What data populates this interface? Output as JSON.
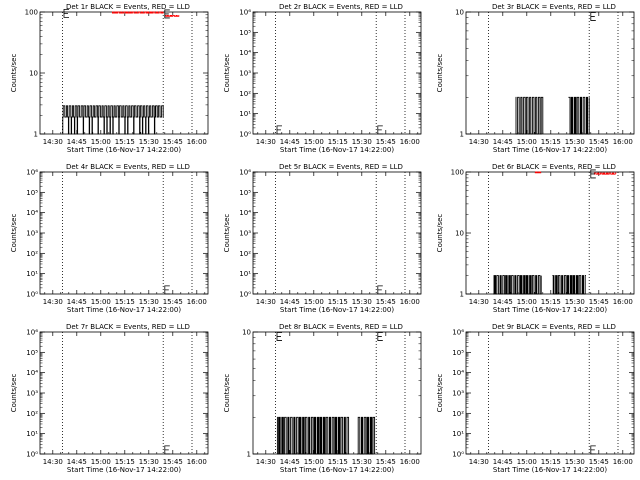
{
  "chart_data": [
    {
      "type": "line",
      "title": "Det 1r BLACK = Events, RED = LLD",
      "xlabel": "Start Time (16-Nov-17 14:22:00)",
      "ylabel": "Counts/sec",
      "xlim": [
        "14:22",
        "16:07"
      ],
      "x_ticks": [
        "14:30",
        "14:45",
        "15:00",
        "15:15",
        "15:30",
        "15:45",
        "16:00"
      ],
      "yscale": "log",
      "ylim": [
        1,
        100
      ],
      "y_ticks": [
        "1",
        "10",
        "100"
      ],
      "vlines": [
        "14:36",
        "15:39",
        "15:57"
      ],
      "series": [
        {
          "name": "Events",
          "color": "#000000",
          "segments": [
            {
              "from": "14:36",
              "to": "15:34",
              "base": 1.9,
              "alt": 2.9,
              "low": 1
            },
            {
              "from": "15:34",
              "to": "15:39",
              "base": 1.9,
              "alt": 2.9,
              "low": 1.9
            }
          ]
        },
        {
          "name": "LLD",
          "color": "#ff0000",
          "segments": [
            {
              "from": "15:07",
              "to": "15:39",
              "base": 100,
              "alt": 96,
              "low": 96
            },
            {
              "from": "15:40",
              "to": "15:49",
              "base": 88,
              "alt": 85,
              "low": 85
            }
          ]
        }
      ],
      "markers": [
        {
          "x": "14:37",
          "y": 95
        },
        {
          "x": "15:40",
          "y": 93
        }
      ]
    },
    {
      "type": "line",
      "title": "Det 2r BLACK = Events, RED = LLD",
      "xlabel": "Start Time (16-Nov-17 14:22:00)",
      "ylabel": "Counts/sec",
      "xlim": [
        "14:22",
        "16:07"
      ],
      "x_ticks": [
        "14:30",
        "14:45",
        "15:00",
        "15:15",
        "15:30",
        "15:45",
        "16:00"
      ],
      "yscale": "log",
      "ylim": [
        1,
        1000000
      ],
      "y_ticks": [
        "10⁰",
        "10¹",
        "10²",
        "10³",
        "10⁴",
        "10⁵",
        "10⁶"
      ],
      "vlines": [
        "14:36",
        "15:39",
        "15:57"
      ],
      "series": [],
      "markers": [
        {
          "x": "14:37",
          "y": 1.6
        },
        {
          "x": "15:40",
          "y": 1.6
        }
      ]
    },
    {
      "type": "line",
      "title": "Det 3r BLACK = Events, RED = LLD",
      "xlabel": "Start Time (16-Nov-17 14:22:00)",
      "ylabel": "Counts/sec",
      "xlim": [
        "14:22",
        "16:07"
      ],
      "x_ticks": [
        "14:30",
        "14:45",
        "15:00",
        "15:15",
        "15:30",
        "15:45",
        "16:00"
      ],
      "yscale": "log",
      "ylim": [
        1,
        10
      ],
      "y_ticks": [
        "1",
        "10"
      ],
      "vlines": [
        "14:36",
        "15:39",
        "15:57"
      ],
      "series": [
        {
          "name": "Events",
          "color": "#000000",
          "segments": [
            {
              "from": "14:53",
              "to": "15:10",
              "base": 1,
              "alt": 2,
              "low": 1
            },
            {
              "from": "15:26",
              "to": "15:39",
              "base": 2,
              "alt": 1,
              "low": 1
            }
          ]
        }
      ],
      "markers": [
        {
          "x": "15:40",
          "y": 9.2
        }
      ]
    },
    {
      "type": "line",
      "title": "Det 4r BLACK = Events, RED = LLD",
      "xlabel": "Start Time (16-Nov-17 14:22:00)",
      "ylabel": "Counts/sec",
      "xlim": [
        "14:22",
        "16:07"
      ],
      "x_ticks": [
        "14:30",
        "14:45",
        "15:00",
        "15:15",
        "15:30",
        "15:45",
        "16:00"
      ],
      "yscale": "log",
      "ylim": [
        1,
        1000000
      ],
      "y_ticks": [
        "10⁰",
        "10¹",
        "10²",
        "10³",
        "10⁴",
        "10⁵",
        "10⁶"
      ],
      "vlines": [
        "14:36",
        "15:39",
        "15:57"
      ],
      "series": [],
      "markers": [
        {
          "x": "15:40",
          "y": 1.6
        }
      ]
    },
    {
      "type": "line",
      "title": "Det 5r BLACK = Events, RED = LLD",
      "xlabel": "Start Time (16-Nov-17 14:22:00)",
      "ylabel": "Counts/sec",
      "xlim": [
        "14:22",
        "16:07"
      ],
      "x_ticks": [
        "14:30",
        "14:45",
        "15:00",
        "15:15",
        "15:30",
        "15:45",
        "16:00"
      ],
      "yscale": "log",
      "ylim": [
        1,
        1000000
      ],
      "y_ticks": [
        "10⁰",
        "10¹",
        "10²",
        "10³",
        "10⁴",
        "10⁵",
        "10⁶"
      ],
      "vlines": [
        "14:36",
        "15:39",
        "15:57"
      ],
      "series": [],
      "markers": [
        {
          "x": "15:40",
          "y": 1.6
        }
      ]
    },
    {
      "type": "line",
      "title": "Det 6r BLACK = Events, RED = LLD",
      "xlabel": "Start Time (16-Nov-17 14:22:00)",
      "ylabel": "Counts/sec",
      "xlim": [
        "14:22",
        "16:07"
      ],
      "x_ticks": [
        "14:30",
        "14:45",
        "15:00",
        "15:15",
        "15:30",
        "15:45",
        "16:00"
      ],
      "yscale": "log",
      "ylim": [
        1,
        100
      ],
      "y_ticks": [
        "1",
        "10",
        "100"
      ],
      "vlines": [
        "14:36",
        "15:39",
        "15:57"
      ],
      "series": [
        {
          "name": "Events",
          "color": "#000000",
          "segments": [
            {
              "from": "14:39",
              "to": "15:09",
              "base": 2,
              "alt": 1,
              "low": 1
            },
            {
              "from": "15:16",
              "to": "15:37",
              "base": 2,
              "alt": 1,
              "low": 1
            }
          ]
        },
        {
          "name": "LLD",
          "color": "#ff0000",
          "segments": [
            {
              "from": "15:05",
              "to": "15:09",
              "base": 100,
              "alt": 97,
              "low": 97
            },
            {
              "from": "15:42",
              "to": "15:56",
              "base": 96,
              "alt": 92,
              "low": 92
            }
          ]
        }
      ],
      "markers": [
        {
          "x": "15:40",
          "y": 93
        }
      ]
    },
    {
      "type": "line",
      "title": "Det 7r BLACK = Events, RED = LLD",
      "xlabel": "Start Time (16-Nov-17 14:22:00)",
      "ylabel": "Counts/sec",
      "xlim": [
        "14:22",
        "16:07"
      ],
      "x_ticks": [
        "14:30",
        "14:45",
        "15:00",
        "15:15",
        "15:30",
        "15:45",
        "16:00"
      ],
      "yscale": "log",
      "ylim": [
        1,
        1000000
      ],
      "y_ticks": [
        "10⁰",
        "10¹",
        "10²",
        "10³",
        "10⁴",
        "10⁵",
        "10⁶"
      ],
      "vlines": [
        "14:36",
        "15:39",
        "15:57"
      ],
      "series": [],
      "markers": [
        {
          "x": "15:40",
          "y": 1.6
        }
      ]
    },
    {
      "type": "line",
      "title": "Det 8r BLACK = Events, RED = LLD",
      "xlabel": "Start Time (16-Nov-17 14:22:00)",
      "ylabel": "Counts/sec",
      "xlim": [
        "14:22",
        "16:07"
      ],
      "x_ticks": [
        "14:30",
        "14:45",
        "15:00",
        "15:15",
        "15:30",
        "15:45",
        "16:00"
      ],
      "yscale": "log",
      "ylim": [
        1,
        10
      ],
      "y_ticks": [
        "1",
        "10"
      ],
      "vlines": [
        "14:36",
        "15:39",
        "15:57"
      ],
      "series": [
        {
          "name": "Events",
          "color": "#000000",
          "segments": [
            {
              "from": "14:37",
              "to": "15:22",
              "base": 2,
              "alt": 1,
              "low": 1
            },
            {
              "from": "15:27",
              "to": "15:38",
              "base": 2,
              "alt": 1,
              "low": 1
            }
          ]
        }
      ],
      "markers": [
        {
          "x": "14:37",
          "y": 9.2
        },
        {
          "x": "15:40",
          "y": 9.2
        }
      ]
    },
    {
      "type": "line",
      "title": "Det 9r BLACK = Events, RED = LLD",
      "xlabel": "Start Time (16-Nov-17 14:22:00)",
      "ylabel": "Counts/sec",
      "xlim": [
        "14:22",
        "16:07"
      ],
      "x_ticks": [
        "14:30",
        "14:45",
        "15:00",
        "15:15",
        "15:30",
        "15:45",
        "16:00"
      ],
      "yscale": "log",
      "ylim": [
        1,
        1000000
      ],
      "y_ticks": [
        "10⁰",
        "10¹",
        "10²",
        "10³",
        "10⁴",
        "10⁵",
        "10⁶"
      ],
      "vlines": [
        "14:36",
        "15:39",
        "15:57"
      ],
      "series": [],
      "markers": [
        {
          "x": "15:40",
          "y": 1.6
        }
      ]
    }
  ]
}
